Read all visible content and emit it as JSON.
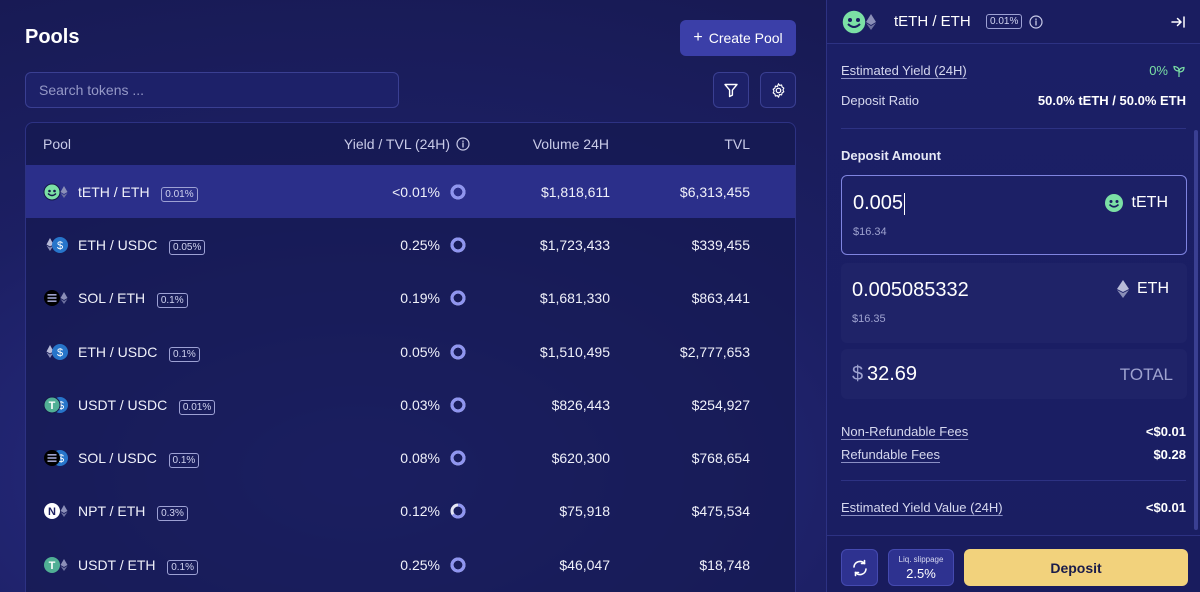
{
  "pools": {
    "title": "Pools",
    "create_label": "Create Pool",
    "search_placeholder": "Search tokens ...",
    "columns": {
      "pool": "Pool",
      "yield": "Yield / TVL (24H)",
      "volume": "Volume 24H",
      "tvl": "TVL"
    },
    "rows": [
      {
        "pair": "tETH / ETH",
        "fee": "0.01%",
        "yield": "<0.01%",
        "volume": "$1,818,611",
        "tvl": "$6,313,455",
        "icon": "teth-eth-icon",
        "ring_fill": 1.0
      },
      {
        "pair": "ETH / USDC",
        "fee": "0.05%",
        "yield": "0.25%",
        "volume": "$1,723,433",
        "tvl": "$339,455",
        "icon": "eth-usdc-icon",
        "ring_fill": 1.0
      },
      {
        "pair": "SOL / ETH",
        "fee": "0.1%",
        "yield": "0.19%",
        "volume": "$1,681,330",
        "tvl": "$863,441",
        "icon": "sol-eth-icon",
        "ring_fill": 1.0
      },
      {
        "pair": "ETH / USDC",
        "fee": "0.1%",
        "yield": "0.05%",
        "volume": "$1,510,495",
        "tvl": "$2,777,653",
        "icon": "eth-usdc-icon",
        "ring_fill": 1.0
      },
      {
        "pair": "USDT / USDC",
        "fee": "0.01%",
        "yield": "0.03%",
        "volume": "$826,443",
        "tvl": "$254,927",
        "icon": "usdt-usdc-icon",
        "ring_fill": 1.0
      },
      {
        "pair": "SOL / USDC",
        "fee": "0.1%",
        "yield": "0.08%",
        "volume": "$620,300",
        "tvl": "$768,654",
        "icon": "sol-usdc-icon",
        "ring_fill": 1.0
      },
      {
        "pair": "NPT / ETH",
        "fee": "0.3%",
        "yield": "0.12%",
        "volume": "$75,918",
        "tvl": "$475,534",
        "icon": "npt-eth-icon",
        "ring_fill": 0.65
      },
      {
        "pair": "USDT / ETH",
        "fee": "0.1%",
        "yield": "0.25%",
        "volume": "$46,047",
        "tvl": "$18,748",
        "icon": "usdt-eth-icon",
        "ring_fill": 1.0
      }
    ]
  },
  "panel": {
    "title": "tETH / ETH",
    "fee": "0.01%",
    "estimated_yield_label": "Estimated Yield (24H)",
    "estimated_yield_value": "0%",
    "deposit_ratio_label": "Deposit Ratio",
    "deposit_ratio_value": "50.0% tETH / 50.0% ETH",
    "deposit_amount_label": "Deposit Amount",
    "input1": {
      "amount": "0.005",
      "usd": "$16.34",
      "token": "tETH"
    },
    "input2": {
      "amount": "0.005085332",
      "usd": "$16.35",
      "token": "ETH"
    },
    "total": {
      "currency": "$",
      "value": "32.69",
      "label": "TOTAL"
    },
    "fees": [
      {
        "label": "Non-Refundable Fees",
        "value": "<$0.01"
      },
      {
        "label": "Refundable Fees",
        "value": "$0.28"
      }
    ],
    "estimated_yield_value_label": "Estimated Yield Value (24H)",
    "estimated_yield_value_amount": "<$0.01",
    "slippage_label": "Liq. slippage",
    "slippage_value": "2.5%",
    "deposit_label": "Deposit"
  },
  "colors": {
    "accent": "#3b3fa8",
    "deposit": "#f2d27c",
    "green": "#7be0a5",
    "ring": "#8f95f0"
  }
}
